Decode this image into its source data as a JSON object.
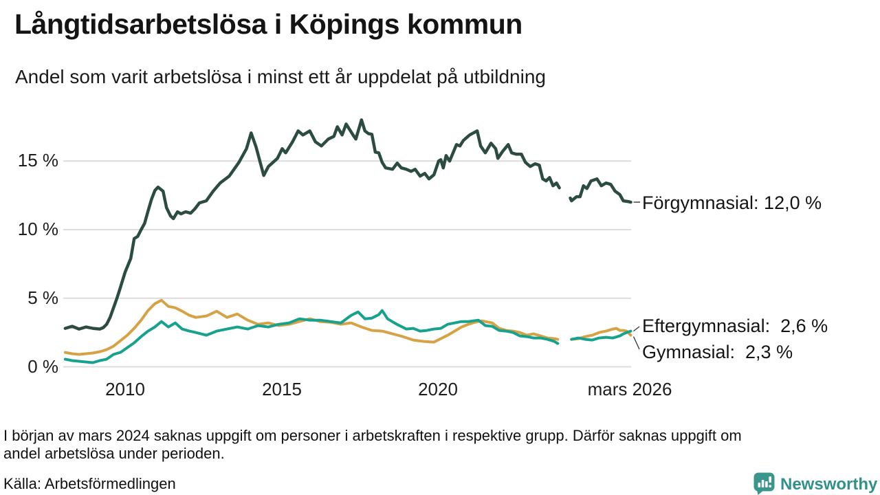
{
  "header": {
    "title": "Långtidsarbetslösa i Köpings kommun",
    "subtitle": "Andel som varit arbetslösa i minst ett år uppdelat på utbildning"
  },
  "chart_data": {
    "type": "line",
    "title": "Långtidsarbetslösa i Köpings kommun",
    "xlabel": "",
    "ylabel": "%",
    "xlim": [
      2008.0,
      2026.25
    ],
    "ylim": [
      0,
      18.5
    ],
    "grid": "horizontal",
    "legend_position": "end-of-line-labels",
    "colors": {
      "forgymnasial": "#2c4c42",
      "eftergymnasial": "#16a28c",
      "gymnasial": "#d5a345",
      "gridline": "#dcdcdc"
    },
    "y_axis": {
      "unit": "%",
      "ticks": [
        {
          "label": "15 %",
          "value": 15
        },
        {
          "label": "10 %",
          "value": 10
        },
        {
          "label": "5 %",
          "value": 5
        },
        {
          "label": "0 %",
          "value": 0
        }
      ]
    },
    "x_axis": {
      "ticks": [
        {
          "label": "2010",
          "year": 2010
        },
        {
          "label": "2015",
          "year": 2015
        },
        {
          "label": "2020",
          "year": 2020
        },
        {
          "label": "mars 2026",
          "year": 2026.17
        }
      ]
    },
    "gap_note": "data gap late 2023 / early 2024",
    "series": [
      {
        "name": "Förgymnasial",
        "end_label": "Förgymnasial: 12,0 %",
        "end_value_pct": 12.0,
        "color": "#2c4c42",
        "points": [
          [
            2008.09,
            2.8
          ],
          [
            2008.31,
            2.95
          ],
          [
            2008.53,
            2.75
          ],
          [
            2008.75,
            2.9
          ],
          [
            2008.97,
            2.8
          ],
          [
            2009.19,
            2.75
          ],
          [
            2009.3,
            2.85
          ],
          [
            2009.41,
            3.1
          ],
          [
            2009.52,
            3.6
          ],
          [
            2009.63,
            4.3
          ],
          [
            2009.74,
            5.0
          ],
          [
            2009.85,
            5.8
          ],
          [
            2010.0,
            6.9
          ],
          [
            2010.18,
            7.9
          ],
          [
            2010.29,
            9.35
          ],
          [
            2010.4,
            9.5
          ],
          [
            2010.51,
            10.0
          ],
          [
            2010.62,
            10.45
          ],
          [
            2010.73,
            11.35
          ],
          [
            2010.84,
            12.2
          ],
          [
            2010.95,
            12.85
          ],
          [
            2011.05,
            13.1
          ],
          [
            2011.21,
            12.8
          ],
          [
            2011.32,
            11.6
          ],
          [
            2011.45,
            11.0
          ],
          [
            2011.54,
            10.8
          ],
          [
            2011.67,
            11.3
          ],
          [
            2011.78,
            11.15
          ],
          [
            2011.93,
            11.3
          ],
          [
            2012.09,
            11.2
          ],
          [
            2012.22,
            11.5
          ],
          [
            2012.37,
            11.95
          ],
          [
            2012.59,
            12.1
          ],
          [
            2012.81,
            12.8
          ],
          [
            2013.03,
            13.4
          ],
          [
            2013.32,
            13.9
          ],
          [
            2013.63,
            14.9
          ],
          [
            2013.87,
            15.9
          ],
          [
            2014.02,
            17.05
          ],
          [
            2014.18,
            16.0
          ],
          [
            2014.42,
            13.95
          ],
          [
            2014.57,
            14.6
          ],
          [
            2014.86,
            15.2
          ],
          [
            2015.01,
            15.9
          ],
          [
            2015.12,
            15.6
          ],
          [
            2015.34,
            16.4
          ],
          [
            2015.52,
            17.2
          ],
          [
            2015.67,
            16.9
          ],
          [
            2015.89,
            17.2
          ],
          [
            2016.07,
            16.4
          ],
          [
            2016.26,
            16.1
          ],
          [
            2016.48,
            16.6
          ],
          [
            2016.66,
            16.8
          ],
          [
            2016.77,
            17.5
          ],
          [
            2016.92,
            16.9
          ],
          [
            2017.05,
            17.7
          ],
          [
            2017.27,
            16.9
          ],
          [
            2017.36,
            16.6
          ],
          [
            2017.54,
            18.0
          ],
          [
            2017.65,
            17.2
          ],
          [
            2017.76,
            17.0
          ],
          [
            2017.87,
            16.95
          ],
          [
            2017.98,
            15.65
          ],
          [
            2018.09,
            15.6
          ],
          [
            2018.2,
            14.9
          ],
          [
            2018.31,
            14.5
          ],
          [
            2018.53,
            14.4
          ],
          [
            2018.68,
            14.85
          ],
          [
            2018.81,
            14.5
          ],
          [
            2018.97,
            14.4
          ],
          [
            2019.12,
            14.25
          ],
          [
            2019.25,
            14.4
          ],
          [
            2019.41,
            13.9
          ],
          [
            2019.56,
            14.1
          ],
          [
            2019.69,
            13.7
          ],
          [
            2019.85,
            14.0
          ],
          [
            2020.0,
            15.0
          ],
          [
            2020.07,
            15.1
          ],
          [
            2020.15,
            14.5
          ],
          [
            2020.24,
            15.4
          ],
          [
            2020.35,
            15.0
          ],
          [
            2020.46,
            15.6
          ],
          [
            2020.57,
            16.2
          ],
          [
            2020.68,
            16.1
          ],
          [
            2020.79,
            16.5
          ],
          [
            2020.99,
            16.9
          ],
          [
            2021.23,
            17.2
          ],
          [
            2021.34,
            16.1
          ],
          [
            2021.49,
            15.6
          ],
          [
            2021.67,
            16.3
          ],
          [
            2021.82,
            15.9
          ],
          [
            2021.89,
            15.2
          ],
          [
            2022.04,
            15.7
          ],
          [
            2022.22,
            16.2
          ],
          [
            2022.33,
            15.6
          ],
          [
            2022.48,
            15.5
          ],
          [
            2022.64,
            15.5
          ],
          [
            2022.77,
            14.9
          ],
          [
            2022.92,
            14.6
          ],
          [
            2023.08,
            14.8
          ],
          [
            2023.21,
            14.7
          ],
          [
            2023.32,
            13.7
          ],
          [
            2023.43,
            13.55
          ],
          [
            2023.54,
            13.8
          ],
          [
            2023.65,
            13.2
          ],
          [
            2023.76,
            13.4
          ],
          [
            2023.85,
            13.05
          ],
          null,
          [
            2024.2,
            12.3
          ],
          [
            2024.24,
            12.1
          ],
          [
            2024.4,
            12.4
          ],
          [
            2024.51,
            12.4
          ],
          [
            2024.62,
            13.2
          ],
          [
            2024.73,
            13.0
          ],
          [
            2024.86,
            13.55
          ],
          [
            2025.05,
            13.7
          ],
          [
            2025.19,
            13.2
          ],
          [
            2025.34,
            13.4
          ],
          [
            2025.49,
            13.3
          ],
          [
            2025.63,
            12.8
          ],
          [
            2025.78,
            12.55
          ],
          [
            2025.89,
            12.1
          ],
          [
            2026.04,
            12.05
          ],
          [
            2026.13,
            12.0
          ]
        ]
      },
      {
        "name": "Eftergymnasial",
        "end_label": "Eftergymnasial:  2,6 %",
        "end_value_pct": 2.6,
        "color": "#16a28c",
        "points": [
          [
            2008.09,
            0.55
          ],
          [
            2008.31,
            0.45
          ],
          [
            2008.53,
            0.4
          ],
          [
            2008.75,
            0.35
          ],
          [
            2008.97,
            0.3
          ],
          [
            2009.19,
            0.45
          ],
          [
            2009.41,
            0.55
          ],
          [
            2009.63,
            0.9
          ],
          [
            2009.85,
            1.05
          ],
          [
            2010.07,
            1.4
          ],
          [
            2010.29,
            1.75
          ],
          [
            2010.51,
            2.2
          ],
          [
            2010.73,
            2.6
          ],
          [
            2010.95,
            2.9
          ],
          [
            2011.16,
            3.3
          ],
          [
            2011.38,
            2.9
          ],
          [
            2011.6,
            3.2
          ],
          [
            2011.82,
            2.75
          ],
          [
            2012.05,
            2.6
          ],
          [
            2012.25,
            2.5
          ],
          [
            2012.59,
            2.3
          ],
          [
            2012.92,
            2.6
          ],
          [
            2013.25,
            2.75
          ],
          [
            2013.58,
            2.9
          ],
          [
            2013.91,
            2.75
          ],
          [
            2014.24,
            3.0
          ],
          [
            2014.57,
            2.9
          ],
          [
            2014.9,
            3.1
          ],
          [
            2015.23,
            3.2
          ],
          [
            2015.56,
            3.5
          ],
          [
            2015.89,
            3.4
          ],
          [
            2016.22,
            3.4
          ],
          [
            2016.55,
            3.3
          ],
          [
            2016.88,
            3.2
          ],
          [
            2017.21,
            3.75
          ],
          [
            2017.43,
            4.0
          ],
          [
            2017.65,
            3.5
          ],
          [
            2017.87,
            3.55
          ],
          [
            2018.09,
            3.8
          ],
          [
            2018.2,
            4.1
          ],
          [
            2018.37,
            3.5
          ],
          [
            2018.59,
            3.2
          ],
          [
            2018.75,
            3.0
          ],
          [
            2018.97,
            2.75
          ],
          [
            2019.19,
            2.8
          ],
          [
            2019.41,
            2.6
          ],
          [
            2019.63,
            2.65
          ],
          [
            2019.85,
            2.75
          ],
          [
            2020.07,
            2.8
          ],
          [
            2020.29,
            3.1
          ],
          [
            2020.51,
            3.2
          ],
          [
            2020.73,
            3.3
          ],
          [
            2020.95,
            3.3
          ],
          [
            2021.27,
            3.4
          ],
          [
            2021.49,
            3.0
          ],
          [
            2021.71,
            2.95
          ],
          [
            2021.93,
            2.65
          ],
          [
            2022.15,
            2.6
          ],
          [
            2022.37,
            2.5
          ],
          [
            2022.59,
            2.25
          ],
          [
            2022.81,
            2.2
          ],
          [
            2023.03,
            2.1
          ],
          [
            2023.25,
            2.1
          ],
          [
            2023.47,
            2.0
          ],
          [
            2023.69,
            1.85
          ],
          [
            2023.8,
            1.7
          ],
          null,
          [
            2024.24,
            2.0
          ],
          [
            2024.46,
            2.1
          ],
          [
            2024.68,
            2.0
          ],
          [
            2024.9,
            1.95
          ],
          [
            2025.12,
            2.1
          ],
          [
            2025.34,
            2.15
          ],
          [
            2025.56,
            2.1
          ],
          [
            2025.78,
            2.25
          ],
          [
            2025.89,
            2.4
          ],
          [
            2026.0,
            2.5
          ],
          [
            2026.13,
            2.6
          ]
        ]
      },
      {
        "name": "Gymnasial",
        "end_label": "Gymnasial:  2,3 %",
        "end_value_pct": 2.3,
        "color": "#d5a345",
        "points": [
          [
            2008.09,
            1.05
          ],
          [
            2008.31,
            0.95
          ],
          [
            2008.53,
            0.9
          ],
          [
            2008.75,
            0.95
          ],
          [
            2008.97,
            1.0
          ],
          [
            2009.19,
            1.1
          ],
          [
            2009.41,
            1.25
          ],
          [
            2009.63,
            1.5
          ],
          [
            2009.85,
            1.9
          ],
          [
            2010.07,
            2.3
          ],
          [
            2010.29,
            2.8
          ],
          [
            2010.51,
            3.4
          ],
          [
            2010.73,
            4.1
          ],
          [
            2010.95,
            4.6
          ],
          [
            2011.16,
            4.85
          ],
          [
            2011.38,
            4.4
          ],
          [
            2011.6,
            4.3
          ],
          [
            2011.82,
            4.05
          ],
          [
            2012.05,
            3.75
          ],
          [
            2012.25,
            3.6
          ],
          [
            2012.59,
            3.7
          ],
          [
            2012.92,
            4.05
          ],
          [
            2013.25,
            3.6
          ],
          [
            2013.58,
            3.85
          ],
          [
            2013.91,
            3.4
          ],
          [
            2014.24,
            3.1
          ],
          [
            2014.57,
            3.2
          ],
          [
            2014.9,
            3.0
          ],
          [
            2015.23,
            3.1
          ],
          [
            2015.56,
            3.3
          ],
          [
            2015.89,
            3.5
          ],
          [
            2016.22,
            3.3
          ],
          [
            2016.55,
            3.25
          ],
          [
            2016.88,
            3.1
          ],
          [
            2017.21,
            3.2
          ],
          [
            2017.54,
            2.9
          ],
          [
            2017.87,
            2.65
          ],
          [
            2018.2,
            2.6
          ],
          [
            2018.53,
            2.4
          ],
          [
            2018.86,
            2.2
          ],
          [
            2019.19,
            1.95
          ],
          [
            2019.52,
            1.85
          ],
          [
            2019.85,
            1.8
          ],
          [
            2020.07,
            2.05
          ],
          [
            2020.29,
            2.3
          ],
          [
            2020.51,
            2.6
          ],
          [
            2020.73,
            2.9
          ],
          [
            2020.95,
            3.1
          ],
          [
            2021.16,
            3.25
          ],
          [
            2021.38,
            3.35
          ],
          [
            2021.49,
            3.3
          ],
          [
            2021.71,
            3.2
          ],
          [
            2021.93,
            2.8
          ],
          [
            2022.15,
            2.65
          ],
          [
            2022.37,
            2.6
          ],
          [
            2022.59,
            2.5
          ],
          [
            2022.81,
            2.3
          ],
          [
            2023.03,
            2.4
          ],
          [
            2023.25,
            2.25
          ],
          [
            2023.47,
            2.1
          ],
          [
            2023.69,
            2.05
          ],
          [
            2023.8,
            2.0
          ],
          null,
          [
            2024.24,
            2.0
          ],
          [
            2024.46,
            2.05
          ],
          [
            2024.68,
            2.2
          ],
          [
            2024.9,
            2.3
          ],
          [
            2025.12,
            2.5
          ],
          [
            2025.34,
            2.6
          ],
          [
            2025.56,
            2.75
          ],
          [
            2025.67,
            2.8
          ],
          [
            2025.78,
            2.65
          ],
          [
            2025.89,
            2.65
          ],
          [
            2026.0,
            2.6
          ],
          [
            2026.13,
            2.3
          ]
        ]
      }
    ]
  },
  "footer": {
    "note_line1": "I början av mars 2024 saknas uppgift om personer i arbetskraften i respektive grupp. Därför saknas uppgift om",
    "note_line2": "andel arbetslösa under perioden.",
    "source": "Källa: Arbetsförmedlingen",
    "brand": "Newsworthy",
    "brand_color": "#31918a"
  }
}
